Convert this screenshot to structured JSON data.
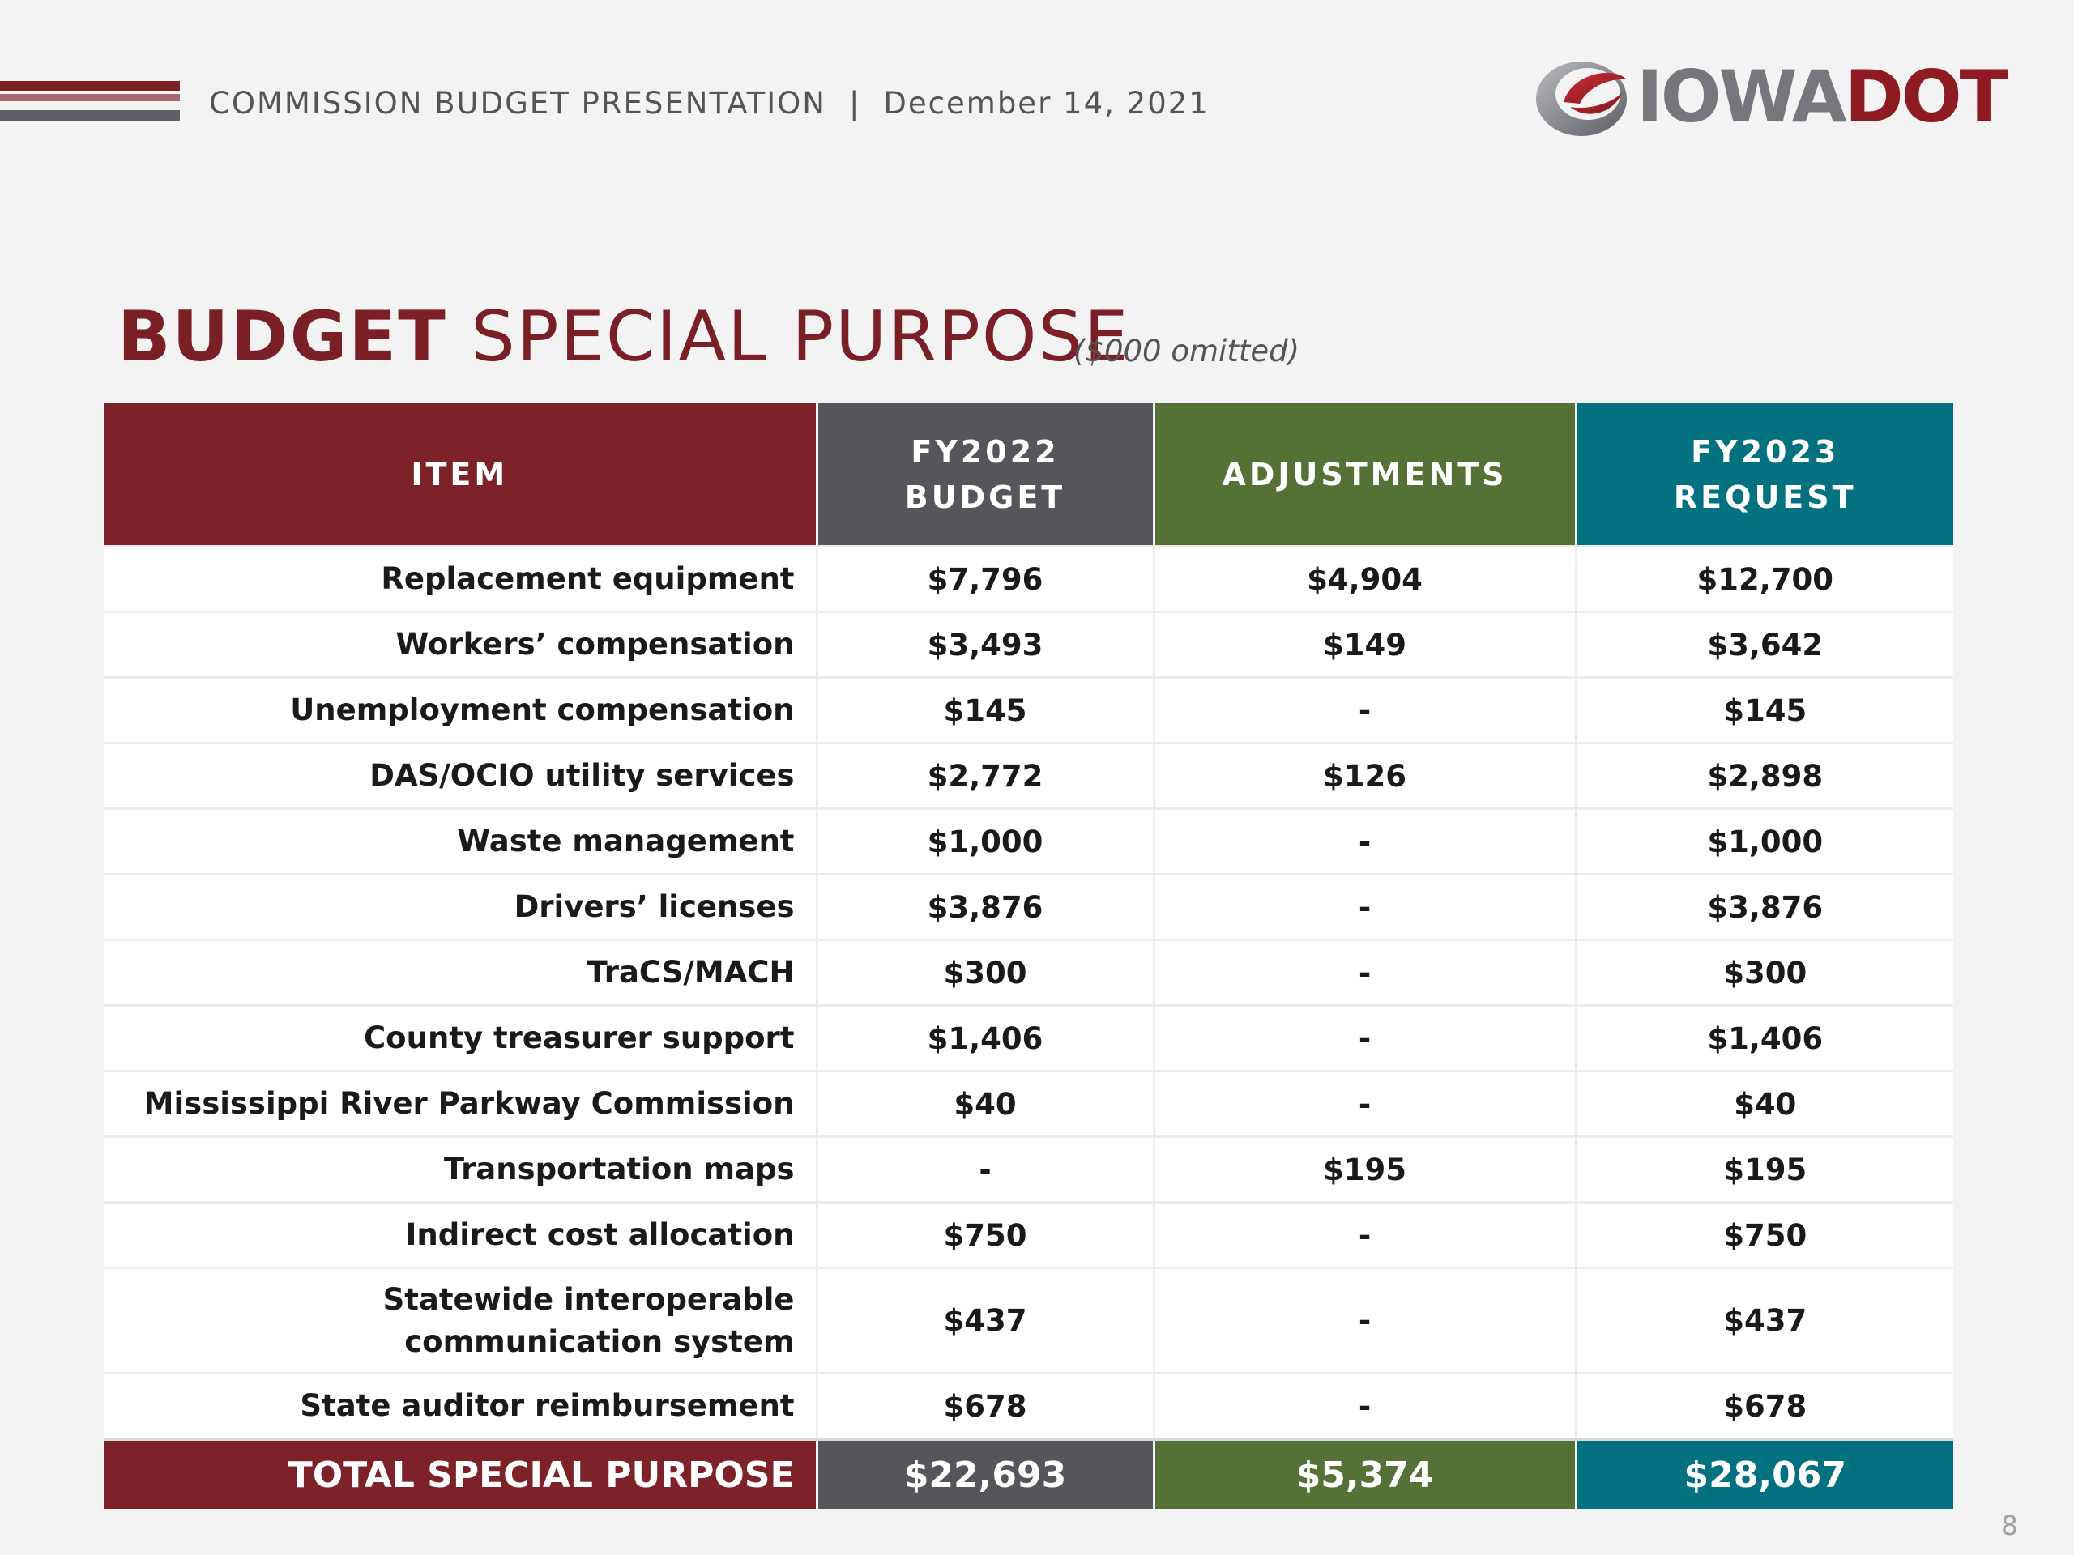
{
  "header": {
    "presentation": "COMMISSION BUDGET PRESENTATION",
    "separator": "|",
    "date": "December 14, 2021"
  },
  "logo": {
    "part1": "IOWA",
    "part2": "DOT"
  },
  "title": {
    "bold": "BUDGET",
    "rest": " SPECIAL PURPOSE",
    "subtitle": "($000 omitted)"
  },
  "table": {
    "headers": {
      "item": "ITEM",
      "fy2022_line1": "FY2022",
      "fy2022_line2": "BUDGET",
      "adjustments": "ADJUSTMENTS",
      "fy2023_line1": "FY2023",
      "fy2023_line2": "REQUEST"
    },
    "rows": [
      {
        "item": "Replacement equipment",
        "fy2022": "$7,796",
        "adjustments": "$4,904",
        "fy2023": "$12,700"
      },
      {
        "item": "Workers’ compensation",
        "fy2022": "$3,493",
        "adjustments": "$149",
        "fy2023": "$3,642"
      },
      {
        "item": "Unemployment compensation",
        "fy2022": "$145",
        "adjustments": "-",
        "fy2023": "$145"
      },
      {
        "item": "DAS/OCIO utility services",
        "fy2022": "$2,772",
        "adjustments": "$126",
        "fy2023": "$2,898"
      },
      {
        "item": "Waste management",
        "fy2022": "$1,000",
        "adjustments": "-",
        "fy2023": "$1,000"
      },
      {
        "item": "Drivers’ licenses",
        "fy2022": "$3,876",
        "adjustments": "-",
        "fy2023": "$3,876"
      },
      {
        "item": "TraCS/MACH",
        "fy2022": "$300",
        "adjustments": "-",
        "fy2023": "$300"
      },
      {
        "item": "County treasurer support",
        "fy2022": "$1,406",
        "adjustments": "-",
        "fy2023": "$1,406"
      },
      {
        "item": "Mississippi River Parkway Commission",
        "fy2022": "$40",
        "adjustments": "-",
        "fy2023": "$40"
      },
      {
        "item": "Transportation maps",
        "fy2022": "-",
        "adjustments": "$195",
        "fy2023": "$195"
      },
      {
        "item": "Indirect cost allocation",
        "fy2022": "$750",
        "adjustments": "-",
        "fy2023": "$750"
      },
      {
        "item": "Statewide interoperable communication system",
        "fy2022": "$437",
        "adjustments": "-",
        "fy2023": "$437"
      },
      {
        "item": "State auditor reimbursement",
        "fy2022": "$678",
        "adjustments": "-",
        "fy2023": "$678"
      }
    ],
    "total": {
      "item": "TOTAL SPECIAL PURPOSE",
      "fy2022": "$22,693",
      "adjustments": "$5,374",
      "fy2023": "$28,067"
    }
  },
  "page_number": "8",
  "colors": {
    "brand_red": "#7d2229",
    "fy2022_gray": "#54565b",
    "adjustments_green": "#557135",
    "fy2023_teal": "#037180"
  }
}
